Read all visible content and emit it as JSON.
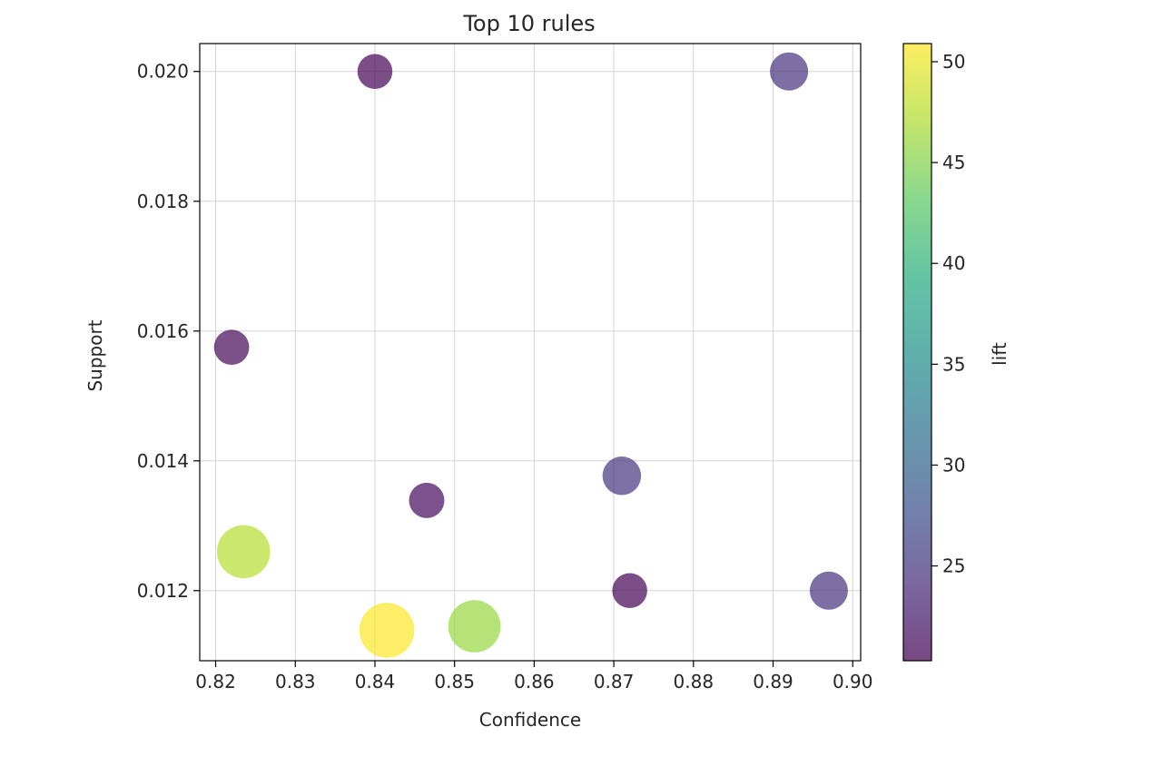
{
  "chart_data": {
    "type": "scatter",
    "title": "Top 10 rules",
    "xlabel": "Confidence",
    "ylabel": "Support",
    "colorbar_label": "lift",
    "xlim": [
      0.818,
      0.901
    ],
    "ylim": [
      0.01092,
      0.02043
    ],
    "xticks": [
      0.82,
      0.83,
      0.84,
      0.85,
      0.86,
      0.87,
      0.88,
      0.89,
      0.9
    ],
    "xtick_labels": [
      "0.82",
      "0.83",
      "0.84",
      "0.85",
      "0.86",
      "0.87",
      "0.88",
      "0.89",
      "0.90"
    ],
    "yticks": [
      0.012,
      0.014,
      0.016,
      0.018,
      0.02
    ],
    "ytick_labels": [
      "0.012",
      "0.014",
      "0.016",
      "0.018",
      "0.020"
    ],
    "colorbar_lim": [
      20.3,
      50.9
    ],
    "colorbar_ticks": [
      25,
      30,
      35,
      40,
      45,
      50
    ],
    "colorbar_tick_labels": [
      "25",
      "30",
      "35",
      "40",
      "45",
      "50"
    ],
    "colormap": "viridis",
    "marker_size_encodes": "lift",
    "alpha": 0.7,
    "grid": true,
    "points": [
      {
        "x": 0.84,
        "y": 0.02,
        "lift": 20.5
      },
      {
        "x": 0.892,
        "y": 0.02,
        "lift": 24.5
      },
      {
        "x": 0.822,
        "y": 0.01575,
        "lift": 20.8
      },
      {
        "x": 0.871,
        "y": 0.01377,
        "lift": 25.0
      },
      {
        "x": 0.8465,
        "y": 0.01339,
        "lift": 21.0
      },
      {
        "x": 0.8235,
        "y": 0.0126,
        "lift": 47.5
      },
      {
        "x": 0.872,
        "y": 0.012,
        "lift": 20.5
      },
      {
        "x": 0.897,
        "y": 0.012,
        "lift": 24.5
      },
      {
        "x": 0.8415,
        "y": 0.01139,
        "lift": 50.8
      },
      {
        "x": 0.8525,
        "y": 0.01145,
        "lift": 46.0
      }
    ]
  }
}
